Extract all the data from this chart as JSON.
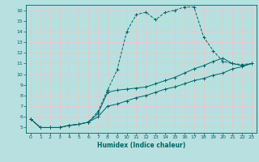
{
  "xlabel": "Humidex (Indice chaleur)",
  "bg_color": "#b8e0e0",
  "grid_color": "#e8c8c8",
  "line_color": "#006666",
  "xlim": [
    -0.5,
    23.5
  ],
  "ylim": [
    4.5,
    16.5
  ],
  "xticks": [
    0,
    1,
    2,
    3,
    4,
    5,
    6,
    7,
    8,
    9,
    10,
    11,
    12,
    13,
    14,
    15,
    16,
    17,
    18,
    19,
    20,
    21,
    22,
    23
  ],
  "yticks": [
    5,
    6,
    7,
    8,
    9,
    10,
    11,
    12,
    13,
    14,
    15,
    16
  ],
  "line1_x": [
    0,
    1,
    2,
    3,
    4,
    5,
    6,
    7,
    8,
    9,
    10,
    11,
    12,
    13,
    14,
    15,
    16,
    17,
    18,
    19,
    20,
    21,
    22,
    23
  ],
  "line1_y": [
    5.8,
    5.0,
    5.0,
    5.0,
    5.2,
    5.3,
    5.5,
    6.5,
    8.5,
    10.4,
    14.0,
    15.6,
    15.8,
    15.1,
    15.8,
    16.0,
    16.3,
    16.3,
    13.5,
    12.2,
    11.2,
    11.0,
    10.9,
    11.0
  ],
  "line2_x": [
    0,
    1,
    2,
    3,
    4,
    5,
    6,
    7,
    8,
    9,
    10,
    11,
    12,
    13,
    14,
    15,
    16,
    17,
    18,
    19,
    20,
    21,
    22,
    23
  ],
  "line2_y": [
    5.8,
    5.0,
    5.0,
    5.0,
    5.2,
    5.3,
    5.5,
    6.3,
    8.3,
    8.5,
    8.6,
    8.7,
    8.8,
    9.1,
    9.4,
    9.7,
    10.1,
    10.5,
    10.8,
    11.2,
    11.5,
    11.0,
    10.8,
    11.0
  ],
  "line3_x": [
    0,
    1,
    2,
    3,
    4,
    5,
    6,
    7,
    8,
    9,
    10,
    11,
    12,
    13,
    14,
    15,
    16,
    17,
    18,
    19,
    20,
    21,
    22,
    23
  ],
  "line3_y": [
    5.8,
    5.0,
    5.0,
    5.0,
    5.2,
    5.3,
    5.5,
    6.0,
    7.0,
    7.2,
    7.5,
    7.8,
    8.0,
    8.3,
    8.6,
    8.8,
    9.1,
    9.4,
    9.6,
    9.9,
    10.1,
    10.5,
    10.7,
    11.0
  ]
}
